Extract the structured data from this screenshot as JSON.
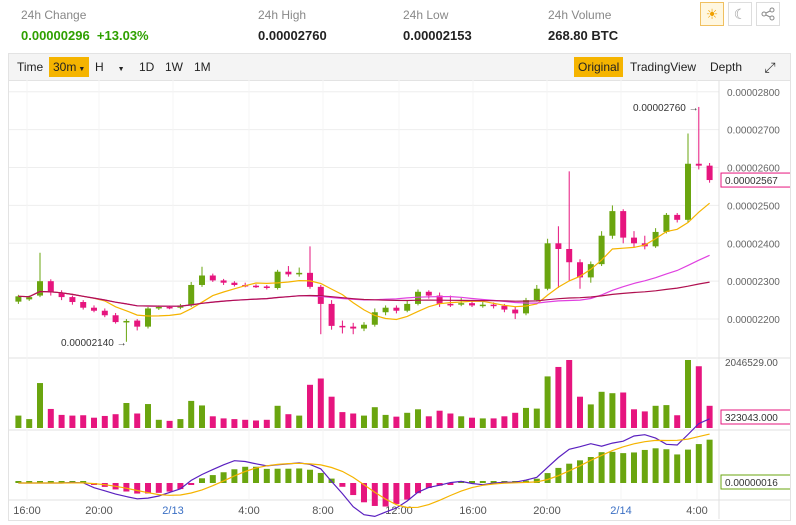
{
  "stats": [
    {
      "label": "24h Change",
      "value": "0.00000296",
      "extra": "+13.03%",
      "green": true
    },
    {
      "label": "24h High",
      "value": "0.00002760"
    },
    {
      "label": "24h Low",
      "value": "0.00002153"
    },
    {
      "label": "24h Volume",
      "value": "268.80 BTC"
    }
  ],
  "icons": [
    "sun-icon",
    "moon-icon",
    "share-icon"
  ],
  "toolbar": {
    "time": "Time",
    "interval": "30m",
    "h": "H",
    "d1": "1D",
    "w1": "1W",
    "m1": "1M",
    "original": "Original",
    "tradingview": "TradingView",
    "depth": "Depth"
  },
  "chart_data": {
    "type": "candlestick",
    "price_axis": [
      "0.00002800",
      "0.00002700",
      "0.00002600",
      "0.00002500",
      "0.00002400",
      "0.00002300",
      "0.00002200"
    ],
    "current_price": "0.00002567",
    "high_marker": "0.00002760",
    "low_marker": "0.00002140",
    "volume_axis_top": "2046529.00",
    "volume_current": "323043.000",
    "indicator_current": "0.00000016",
    "time_labels": [
      "16:00",
      "20:00",
      "2/13",
      "4:00",
      "8:00",
      "12:00",
      "16:00",
      "20:00",
      "2/14",
      "4:00"
    ],
    "candles": [
      [
        2246,
        2260,
        2240,
        2264
      ],
      [
        2252,
        2258,
        2248,
        2262
      ],
      [
        2262,
        2300,
        2258,
        2375
      ],
      [
        2300,
        2270,
        2262,
        2305
      ],
      [
        2270,
        2258,
        2250,
        2276
      ],
      [
        2258,
        2245,
        2238,
        2262
      ],
      [
        2245,
        2230,
        2225,
        2250
      ],
      [
        2230,
        2222,
        2218,
        2236
      ],
      [
        2222,
        2210,
        2205,
        2228
      ],
      [
        2210,
        2192,
        2188,
        2216
      ],
      [
        2192,
        2195,
        2140,
        2200
      ],
      [
        2196,
        2180,
        2170,
        2200
      ],
      [
        2180,
        2228,
        2175,
        2232
      ],
      [
        2228,
        2232,
        2224,
        2236
      ],
      [
        2232,
        2230,
        2226,
        2235
      ],
      [
        2230,
        2236,
        2226,
        2240
      ],
      [
        2236,
        2290,
        2232,
        2298
      ],
      [
        2290,
        2315,
        2285,
        2338
      ],
      [
        2315,
        2302,
        2298,
        2320
      ],
      [
        2302,
        2296,
        2290,
        2306
      ],
      [
        2296,
        2290,
        2286,
        2300
      ],
      [
        2290,
        2288,
        2284,
        2296
      ],
      [
        2288,
        2286,
        2282,
        2292
      ],
      [
        2286,
        2282,
        2278,
        2290
      ],
      [
        2282,
        2325,
        2278,
        2330
      ],
      [
        2325,
        2318,
        2312,
        2340
      ],
      [
        2318,
        2322,
        2312,
        2336
      ],
      [
        2322,
        2285,
        2280,
        2392
      ],
      [
        2285,
        2240,
        2160,
        2290
      ],
      [
        2240,
        2182,
        2172,
        2250
      ],
      [
        2182,
        2180,
        2162,
        2196
      ],
      [
        2180,
        2175,
        2160,
        2190
      ],
      [
        2175,
        2185,
        2168,
        2192
      ],
      [
        2185,
        2218,
        2180,
        2228
      ],
      [
        2218,
        2230,
        2210,
        2236
      ],
      [
        2230,
        2222,
        2215,
        2236
      ],
      [
        2222,
        2240,
        2218,
        2250
      ],
      [
        2240,
        2272,
        2236,
        2278
      ],
      [
        2272,
        2262,
        2254,
        2276
      ],
      [
        2262,
        2240,
        2232,
        2270
      ],
      [
        2240,
        2238,
        2232,
        2262
      ],
      [
        2238,
        2242,
        2234,
        2256
      ],
      [
        2242,
        2236,
        2232,
        2250
      ],
      [
        2236,
        2238,
        2230,
        2246
      ],
      [
        2238,
        2235,
        2228,
        2244
      ],
      [
        2235,
        2225,
        2218,
        2240
      ],
      [
        2225,
        2215,
        2200,
        2232
      ],
      [
        2215,
        2250,
        2210,
        2256
      ],
      [
        2250,
        2280,
        2246,
        2290
      ],
      [
        2280,
        2400,
        2276,
        2412
      ],
      [
        2400,
        2385,
        2282,
        2445
      ],
      [
        2385,
        2350,
        2300,
        2590
      ],
      [
        2350,
        2310,
        2280,
        2358
      ],
      [
        2310,
        2345,
        2296,
        2352
      ],
      [
        2345,
        2420,
        2340,
        2432
      ],
      [
        2420,
        2485,
        2412,
        2500
      ],
      [
        2485,
        2415,
        2400,
        2490
      ],
      [
        2415,
        2400,
        2390,
        2432
      ],
      [
        2400,
        2392,
        2384,
        2420
      ],
      [
        2392,
        2430,
        2388,
        2440
      ],
      [
        2430,
        2475,
        2426,
        2480
      ],
      [
        2475,
        2462,
        2455,
        2480
      ],
      [
        2462,
        2610,
        2456,
        2690
      ],
      [
        2610,
        2605,
        2595,
        2760
      ],
      [
        2605,
        2567,
        2560,
        2612
      ]
    ]
  }
}
